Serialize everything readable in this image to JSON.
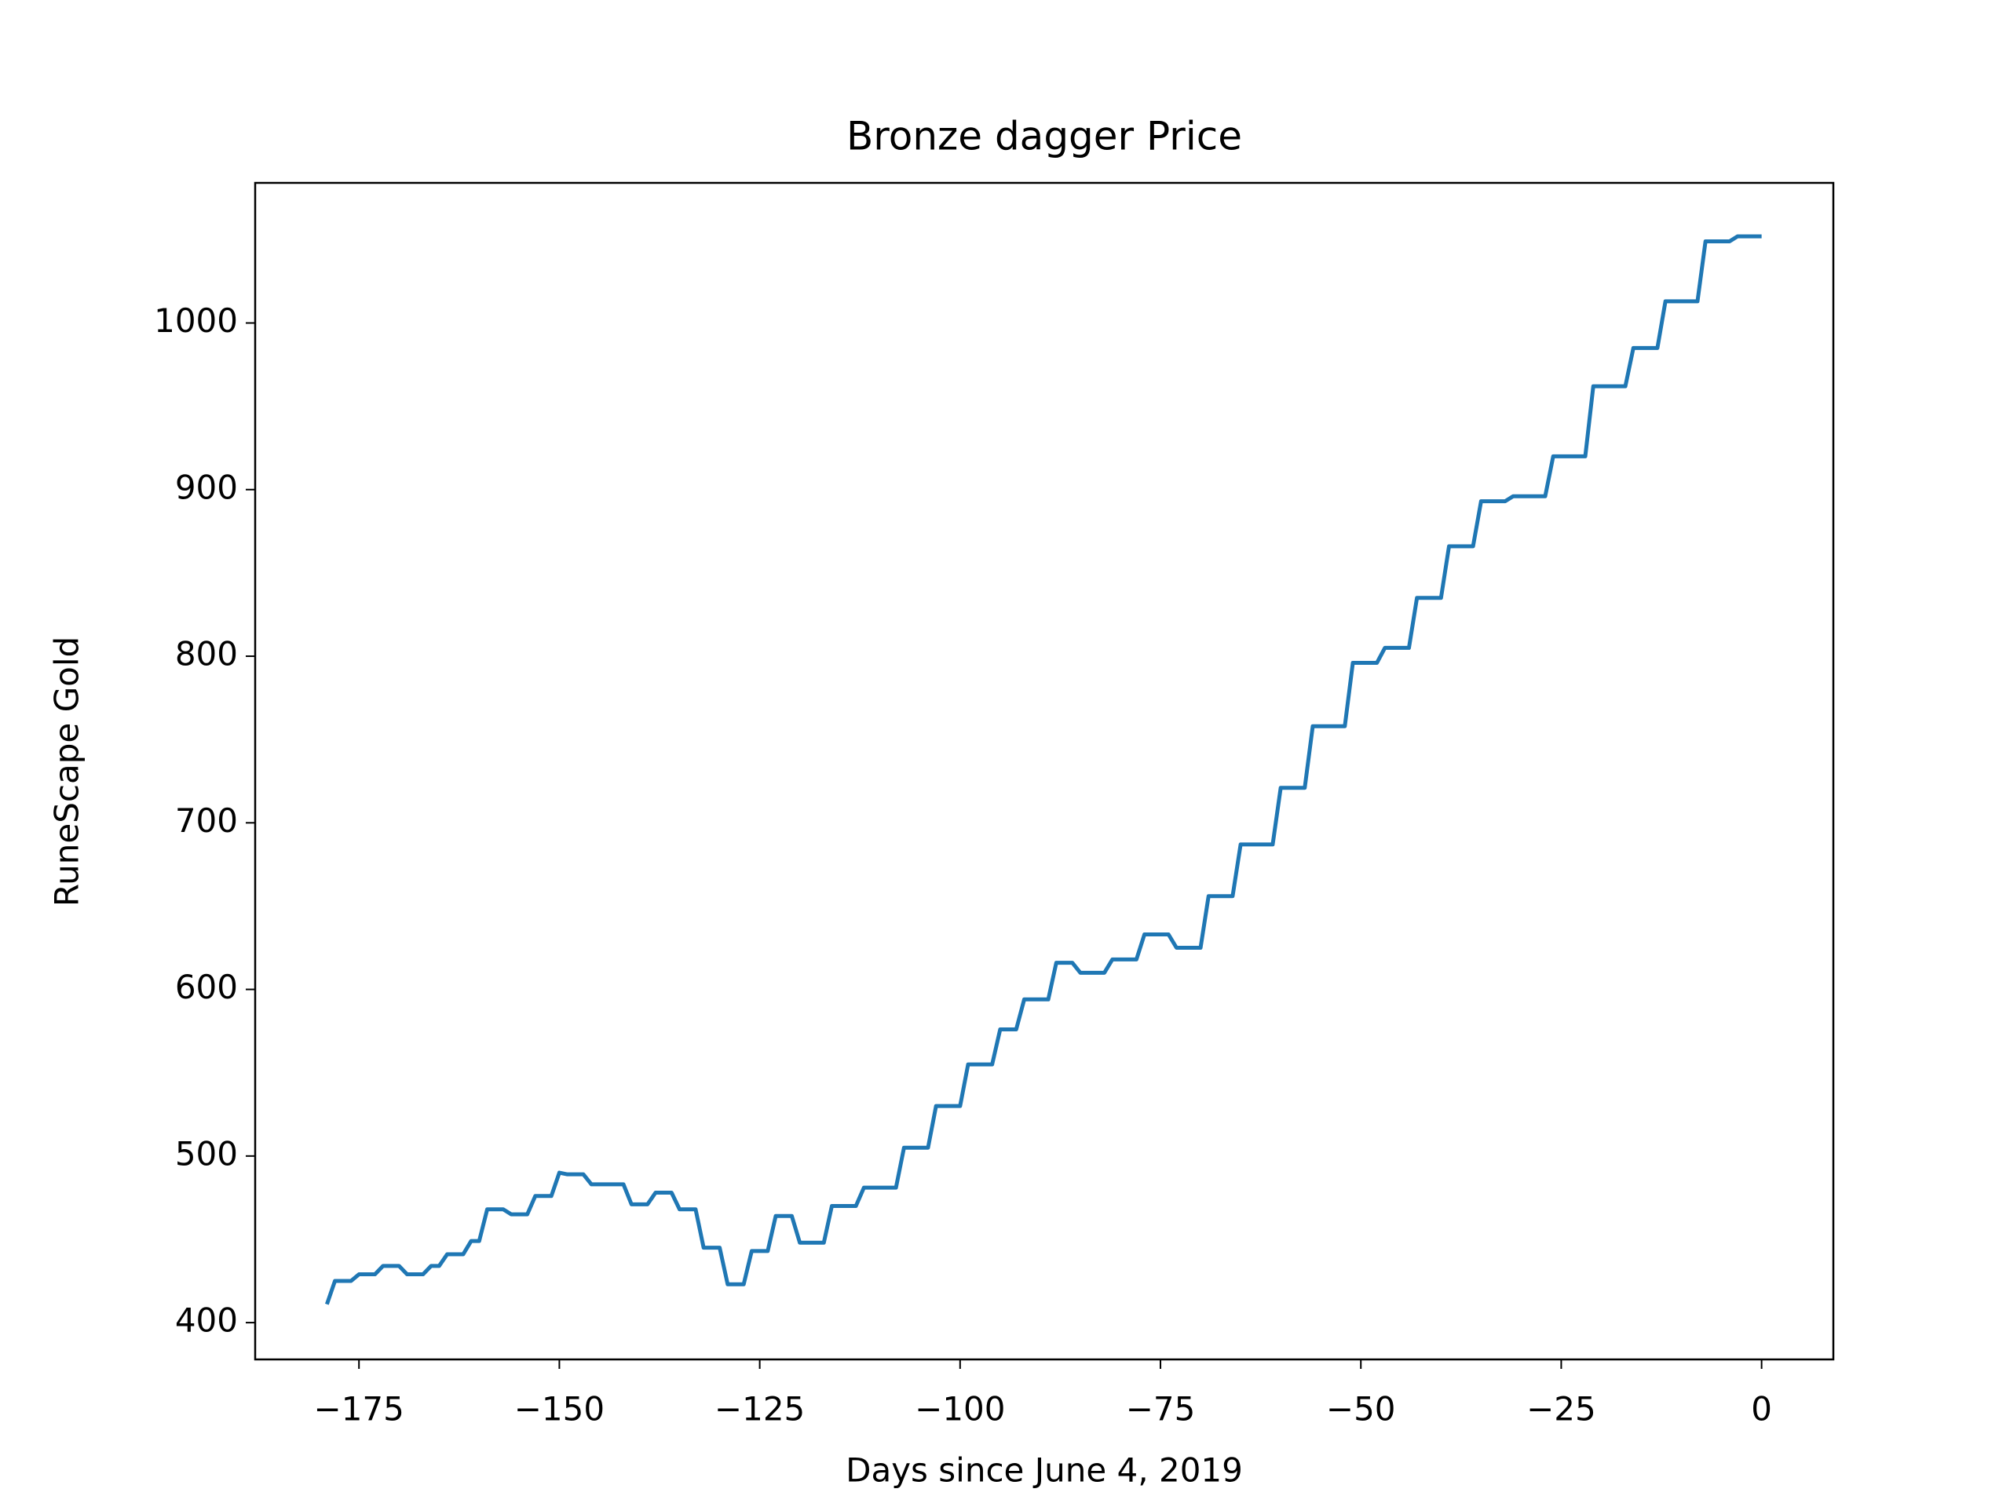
{
  "chart_data": {
    "type": "line",
    "title": "Bronze dagger Price",
    "xlabel": "Days since June 4, 2019",
    "ylabel": "RuneScape Gold",
    "color": "#1f77b4",
    "x": [
      -179,
      -178,
      -177,
      -176,
      -175,
      -174,
      -173,
      -172,
      -171,
      -170,
      -169,
      -168,
      -167,
      -166,
      -165,
      -164,
      -163,
      -162,
      -161,
      -160,
      -159,
      -158,
      -157,
      -156,
      -155,
      -154,
      -153,
      -152,
      -151,
      -150,
      -149,
      -148,
      -147,
      -146,
      -145,
      -144,
      -143,
      -142,
      -141,
      -140,
      -139,
      -138,
      -137,
      -136,
      -135,
      -134,
      -133,
      -132,
      -131,
      -130,
      -129,
      -128,
      -127,
      -126,
      -125,
      -124,
      -123,
      -122,
      -121,
      -120,
      -119,
      -118,
      -117,
      -116,
      -115,
      -114,
      -113,
      -112,
      -111,
      -110,
      -109,
      -108,
      -107,
      -106,
      -105,
      -104,
      -103,
      -102,
      -101,
      -100,
      -99,
      -98,
      -97,
      -96,
      -95,
      -94,
      -93,
      -92,
      -91,
      -90,
      -89,
      -88,
      -87,
      -86,
      -85,
      -84,
      -83,
      -82,
      -81,
      -80,
      -79,
      -78,
      -77,
      -76,
      -75,
      -74,
      -73,
      -72,
      -71,
      -70,
      -69,
      -68,
      -67,
      -66,
      -65,
      -64,
      -63,
      -62,
      -61,
      -60,
      -59,
      -58,
      -57,
      -56,
      -55,
      -54,
      -53,
      -52,
      -51,
      -50,
      -49,
      -48,
      -47,
      -46,
      -45,
      -44,
      -43,
      -42,
      -41,
      -40,
      -39,
      -38,
      -37,
      -36,
      -35,
      -34,
      -33,
      -32,
      -31,
      -30,
      -29,
      -28,
      -27,
      -26,
      -25,
      -24,
      -23,
      -22,
      -21,
      -20,
      -19,
      -18,
      -17,
      -16,
      -15,
      -14,
      -13,
      -12,
      -11,
      -10,
      -9,
      -8,
      -7,
      -6,
      -5,
      -4,
      -3,
      -2,
      -1,
      0
    ],
    "values": [
      411,
      425,
      425,
      425,
      429,
      429,
      429,
      434,
      434,
      434,
      429,
      429,
      429,
      434,
      434,
      441,
      441,
      441,
      449,
      449,
      468,
      468,
      468,
      465,
      465,
      465,
      476,
      476,
      476,
      490,
      489,
      489,
      489,
      483,
      483,
      483,
      483,
      483,
      471,
      471,
      471,
      478,
      478,
      478,
      468,
      468,
      468,
      445,
      445,
      445,
      423,
      423,
      423,
      443,
      443,
      443,
      464,
      464,
      464,
      448,
      448,
      448,
      448,
      470,
      470,
      470,
      470,
      481,
      481,
      481,
      481,
      481,
      505,
      505,
      505,
      505,
      530,
      530,
      530,
      530,
      555,
      555,
      555,
      555,
      576,
      576,
      576,
      594,
      594,
      594,
      594,
      616,
      616,
      616,
      610,
      610,
      610,
      610,
      618,
      618,
      618,
      618,
      633,
      633,
      633,
      633,
      625,
      625,
      625,
      625,
      656,
      656,
      656,
      656,
      687,
      687,
      687,
      687,
      687,
      721,
      721,
      721,
      721,
      758,
      758,
      758,
      758,
      758,
      796,
      796,
      796,
      796,
      805,
      805,
      805,
      805,
      835,
      835,
      835,
      835,
      866,
      866,
      866,
      866,
      893,
      893,
      893,
      893,
      896,
      896,
      896,
      896,
      896,
      920,
      920,
      920,
      920,
      920,
      962,
      962,
      962,
      962,
      962,
      985,
      985,
      985,
      985,
      1013,
      1013,
      1013,
      1013,
      1013,
      1049,
      1049,
      1049,
      1049,
      1052,
      1052,
      1052,
      1052
    ],
    "xlim": [
      -187.95,
      8.95
    ],
    "ylim": [
      377.9,
      1084.1
    ],
    "xticks": [
      {
        "value": -175,
        "label": "−175"
      },
      {
        "value": -150,
        "label": "−150"
      },
      {
        "value": -125,
        "label": "−125"
      },
      {
        "value": -100,
        "label": "−100"
      },
      {
        "value": -75,
        "label": "−75"
      },
      {
        "value": -50,
        "label": "−50"
      },
      {
        "value": -25,
        "label": "−25"
      },
      0
    ],
    "yticks": [
      400,
      500,
      600,
      700,
      800,
      900,
      1000
    ]
  }
}
